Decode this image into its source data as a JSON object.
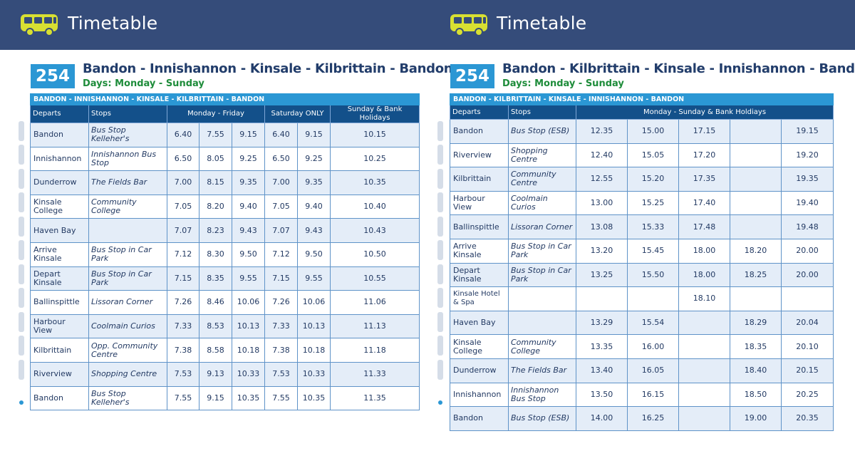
{
  "header": {
    "left_title": "Timetable",
    "right_title": "Timetable",
    "icon": "bus-icon",
    "colors": {
      "bar": "#354c7a",
      "bus": "#d8e032"
    }
  },
  "left": {
    "route_number": "254",
    "title": "Bandon - Innishannon - Kinsale - Kilbrittain - Bandon",
    "days": "Days: Monday - Sunday",
    "band": "BANDON - INNISHANNON - KINSALE - KILBRITTAIN - BANDON",
    "columns": {
      "departs": "Departs",
      "stops": "Stops",
      "mon_fri": "Monday - Friday",
      "sat": "Saturday ONLY",
      "sun": "Sunday & Bank Holidays"
    },
    "rows": [
      {
        "departs": "Bandon",
        "stop": "Bus Stop Kelleher's",
        "times": [
          "6.40",
          "7.55",
          "9.15",
          "6.40",
          "9.15",
          "10.15"
        ]
      },
      {
        "departs": "Innishannon",
        "stop": "Innishannon Bus Stop",
        "times": [
          "6.50",
          "8.05",
          "9.25",
          "6.50",
          "9.25",
          "10.25"
        ]
      },
      {
        "departs": "Dunderrow",
        "stop": "The Fields Bar",
        "times": [
          "7.00",
          "8.15",
          "9.35",
          "7.00",
          "9.35",
          "10.35"
        ]
      },
      {
        "departs": "Kinsale College",
        "stop": "Community College",
        "times": [
          "7.05",
          "8.20",
          "9.40",
          "7.05",
          "9.40",
          "10.40"
        ]
      },
      {
        "departs": "Haven Bay",
        "stop": "",
        "times": [
          "7.07",
          "8.23",
          "9.43",
          "7.07",
          "9.43",
          "10.43"
        ]
      },
      {
        "departs": "Arrive Kinsale",
        "stop": "Bus Stop in Car Park",
        "times": [
          "7.12",
          "8.30",
          "9.50",
          "7.12",
          "9.50",
          "10.50"
        ]
      },
      {
        "departs": "Depart Kinsale",
        "stop": "Bus Stop in Car Park",
        "times": [
          "7.15",
          "8.35",
          "9.55",
          "7.15",
          "9.55",
          "10.55"
        ]
      },
      {
        "departs": "Ballinspittle",
        "stop": "Lissoran Corner",
        "times": [
          "7.26",
          "8.46",
          "10.06",
          "7.26",
          "10.06",
          "11.06"
        ]
      },
      {
        "departs": "Harbour View",
        "stop": "Coolmain Curios",
        "times": [
          "7.33",
          "8.53",
          "10.13",
          "7.33",
          "10.13",
          "11.13"
        ]
      },
      {
        "departs": "Kilbrittain",
        "stop": "Opp. Community Centre",
        "times": [
          "7.38",
          "8.58",
          "10.18",
          "7.38",
          "10.18",
          "11.18"
        ]
      },
      {
        "departs": "Riverview",
        "stop": "Shopping Centre",
        "times": [
          "7.53",
          "9.13",
          "10.33",
          "7.53",
          "10.33",
          "11.33"
        ]
      },
      {
        "departs": "Bandon",
        "stop": "Bus Stop Kelleher's",
        "times": [
          "7.55",
          "9.15",
          "10.35",
          "7.55",
          "10.35",
          "11.35"
        ]
      }
    ]
  },
  "right": {
    "route_number": "254",
    "title": "Bandon - Kilbrittain - Kinsale - Innishannon - Bandon",
    "days": "Days: Monday - Sunday",
    "band": "BANDON - KILBRITTAIN - KINSALE - INNISHANNON - BANDON",
    "columns": {
      "departs": "Departs",
      "stops": "Stops",
      "all": "Monday - Sunday & Bank Holdiays"
    },
    "rows": [
      {
        "departs": "Bandon",
        "stop": "Bus Stop (ESB)",
        "times": [
          "12.35",
          "15.00",
          "17.15",
          "",
          "19.15"
        ]
      },
      {
        "departs": "Riverview",
        "stop": "Shopping Centre",
        "times": [
          "12.40",
          "15.05",
          "17.20",
          "",
          "19.20"
        ]
      },
      {
        "departs": "Kilbrittain",
        "stop": "Community Centre",
        "times": [
          "12.55",
          "15.20",
          "17.35",
          "",
          "19.35"
        ]
      },
      {
        "departs": "Harbour View",
        "stop": "Coolmain Curios",
        "times": [
          "13.00",
          "15.25",
          "17.40",
          "",
          "19.40"
        ]
      },
      {
        "departs": "Ballinspittle",
        "stop": "Lissoran Corner",
        "times": [
          "13.08",
          "15.33",
          "17.48",
          "",
          "19.48"
        ]
      },
      {
        "departs": "Arrive Kinsale",
        "stop": "Bus Stop in Car Park",
        "times": [
          "13.20",
          "15.45",
          "18.00",
          "18.20",
          "20.00"
        ]
      },
      {
        "departs": "Depart Kinsale",
        "stop": "Bus Stop in Car Park",
        "times": [
          "13.25",
          "15.50",
          "18.00",
          "18.25",
          "20.00"
        ]
      },
      {
        "departs": "Kinsale Hotel & Spa",
        "stop": "",
        "times": [
          "",
          "",
          "18.10",
          "",
          ""
        ]
      },
      {
        "departs": "Haven Bay",
        "stop": "",
        "times": [
          "13.29",
          "15.54",
          "",
          "18.29",
          "20.04"
        ]
      },
      {
        "departs": "Kinsale College",
        "stop": "Community College",
        "times": [
          "13.35",
          "16.00",
          "",
          "18.35",
          "20.10"
        ]
      },
      {
        "departs": "Dunderrow",
        "stop": "The Fields Bar",
        "times": [
          "13.40",
          "16.05",
          "",
          "18.40",
          "20.15"
        ]
      },
      {
        "departs": "Innishannon",
        "stop": "Innishannon Bus Stop",
        "times": [
          "13.50",
          "16.15",
          "",
          "18.50",
          "20.25"
        ]
      },
      {
        "departs": "Bandon",
        "stop": "Bus Stop (ESB)",
        "times": [
          "14.00",
          "16.25",
          "",
          "19.00",
          "20.35"
        ]
      }
    ]
  }
}
